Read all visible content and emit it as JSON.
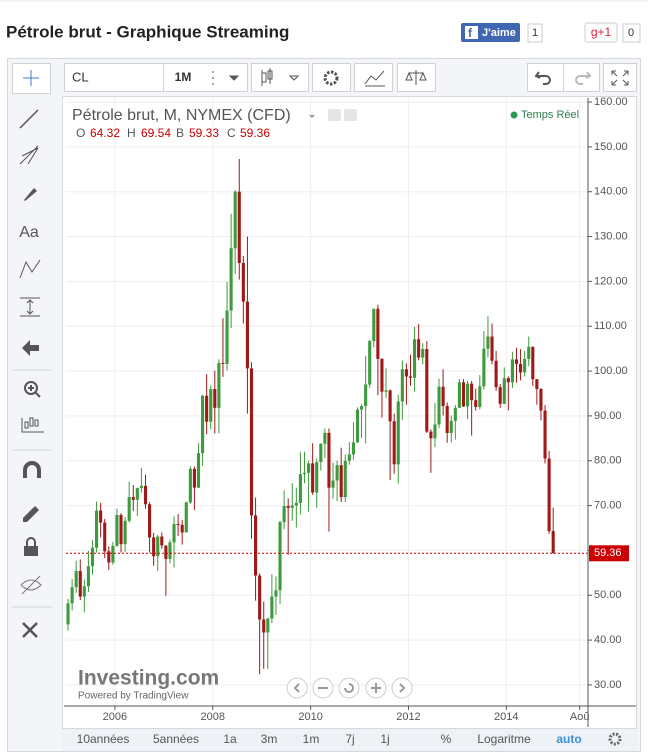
{
  "header": {
    "title": "Pétrole brut - Graphique Streaming",
    "like": "J'aime",
    "like_count": 1,
    "gplus": "g+1",
    "gplus_count": 0
  },
  "toolbar": {
    "symbol": "CL",
    "interval": "1M"
  },
  "sidebar": {
    "text_tool": "Aa"
  },
  "legend": {
    "title": "Pétrole brut, M, NYMEX (CFD)",
    "open": "O",
    "high": "H",
    "low": "B",
    "close": "C",
    "realtime": "Temps Réel"
  },
  "branding": {
    "logo": "Investing.com",
    "powered": "Powered by TradingView"
  },
  "bottom_bar": [
    "10années",
    "5années",
    "1a",
    "3m",
    "1m",
    "7j",
    "1j",
    "%",
    "Logaritme",
    "auto"
  ],
  "chart_data": {
    "type": "candlestick",
    "grid": true,
    "up_color": "#3d9a3d",
    "down_color": "#a01818",
    "last_price_color": "#cc0000",
    "xlim": [
      2005,
      2015.67
    ],
    "xticks": [
      2006,
      2008,
      2010,
      2012,
      2014,
      {
        "value": 2015.5,
        "label": "Aoû"
      }
    ],
    "ylim": [
      25.3,
      160.9
    ],
    "yticks": [
      {
        "value": 30,
        "label": "30.00"
      },
      {
        "value": 40,
        "label": "40.00"
      },
      {
        "value": 50,
        "label": "50.00"
      },
      {
        "value": 60,
        "label": "60.00"
      },
      {
        "value": 70,
        "label": "70.00"
      },
      {
        "value": 80,
        "label": "80.00"
      },
      {
        "value": 90,
        "label": "90.00"
      },
      {
        "value": 100,
        "label": "100.00"
      },
      {
        "value": 110,
        "label": "110.00"
      },
      {
        "value": 120,
        "label": "120.00"
      },
      {
        "value": 130,
        "label": "130.00"
      },
      {
        "value": 140,
        "label": "140.00"
      },
      {
        "value": 150,
        "label": "150.00"
      },
      {
        "value": 160,
        "label": "160.00"
      }
    ],
    "candles": [
      [
        43.5,
        49.2,
        42.1,
        48.2
      ],
      [
        48.2,
        53.6,
        46.6,
        51.8
      ],
      [
        51.8,
        57.7,
        50.5,
        55.4
      ],
      [
        55.4,
        58.0,
        48.9,
        49.7
      ],
      [
        49.7,
        53.5,
        46.2,
        52.0
      ],
      [
        52.0,
        59.9,
        50.7,
        56.5
      ],
      [
        56.5,
        62.3,
        54.6,
        60.6
      ],
      [
        60.6,
        70.9,
        59.5,
        68.9
      ],
      [
        68.9,
        70.6,
        62.9,
        66.2
      ],
      [
        66.2,
        67.0,
        58.3,
        59.8
      ],
      [
        59.8,
        60.9,
        55.6,
        57.3
      ],
      [
        57.3,
        61.9,
        56.8,
        61.0
      ],
      [
        61.0,
        69.3,
        60.8,
        67.9
      ],
      [
        67.9,
        68.3,
        59.5,
        61.4
      ],
      [
        61.4,
        67.4,
        59.7,
        66.6
      ],
      [
        66.6,
        75.3,
        66.2,
        71.9
      ],
      [
        71.9,
        74.6,
        68.8,
        71.3
      ],
      [
        71.3,
        74.0,
        67.7,
        73.9
      ],
      [
        73.9,
        78.4,
        72.9,
        74.4
      ],
      [
        74.4,
        76.9,
        69.3,
        70.3
      ],
      [
        70.3,
        70.8,
        59.5,
        62.9
      ],
      [
        62.9,
        63.9,
        56.6,
        58.7
      ],
      [
        58.7,
        63.5,
        55.4,
        63.1
      ],
      [
        63.1,
        64.0,
        60.4,
        61.1
      ],
      [
        61.1,
        61.1,
        49.9,
        58.1
      ],
      [
        58.1,
        62.4,
        57.1,
        61.8
      ],
      [
        61.8,
        67.6,
        56.2,
        65.9
      ],
      [
        65.9,
        68.1,
        63.2,
        65.7
      ],
      [
        65.7,
        66.8,
        61.3,
        64.0
      ],
      [
        64.0,
        70.9,
        64.0,
        70.7
      ],
      [
        70.7,
        78.8,
        70.4,
        78.2
      ],
      [
        78.2,
        78.7,
        69.0,
        74.0
      ],
      [
        74.0,
        83.9,
        73.9,
        81.7
      ],
      [
        81.7,
        94.7,
        78.9,
        94.5
      ],
      [
        94.5,
        99.3,
        85.9,
        88.7
      ],
      [
        88.7,
        96.8,
        87.0,
        96.0
      ],
      [
        96.0,
        100.1,
        86.1,
        91.8
      ],
      [
        91.8,
        102.6,
        86.1,
        101.8
      ],
      [
        101.8,
        111.8,
        98.7,
        101.6
      ],
      [
        101.6,
        119.9,
        100.1,
        113.5
      ],
      [
        113.5,
        135.1,
        109.6,
        127.4
      ],
      [
        127.4,
        140.4,
        121.6,
        140.0
      ],
      [
        140.0,
        147.3,
        120.4,
        124.1
      ],
      [
        124.1,
        125.7,
        110.6,
        115.5
      ],
      [
        115.5,
        130.0,
        90.5,
        100.6
      ],
      [
        100.6,
        102.0,
        62.6,
        67.8
      ],
      [
        67.8,
        71.8,
        48.8,
        54.4
      ],
      [
        54.4,
        54.9,
        32.4,
        44.6
      ],
      [
        44.6,
        48.6,
        33.6,
        41.7
      ],
      [
        41.7,
        45.0,
        33.6,
        44.8
      ],
      [
        44.8,
        54.7,
        43.8,
        49.7
      ],
      [
        49.7,
        54.2,
        45.6,
        51.1
      ],
      [
        51.1,
        66.6,
        48.1,
        66.3
      ],
      [
        66.3,
        73.4,
        64.7,
        69.9
      ],
      [
        69.9,
        71.6,
        59.0,
        69.5
      ],
      [
        69.5,
        75.0,
        66.6,
        70.0
      ],
      [
        70.0,
        74.0,
        65.1,
        70.6
      ],
      [
        70.6,
        82.0,
        68.0,
        77.0
      ],
      [
        77.0,
        82.0,
        75.0,
        77.3
      ],
      [
        77.3,
        80.0,
        68.6,
        79.4
      ],
      [
        79.4,
        83.9,
        72.4,
        72.9
      ],
      [
        72.9,
        80.5,
        69.5,
        79.7
      ],
      [
        79.7,
        83.9,
        77.8,
        83.8
      ],
      [
        83.8,
        87.2,
        80.6,
        86.2
      ],
      [
        86.2,
        87.2,
        64.2,
        74.0
      ],
      [
        74.0,
        79.6,
        71.5,
        75.6
      ],
      [
        75.6,
        80.0,
        71.0,
        79.0
      ],
      [
        79.0,
        82.9,
        70.8,
        71.9
      ],
      [
        71.9,
        81.4,
        70.8,
        80.0
      ],
      [
        80.0,
        84.2,
        79.1,
        81.4
      ],
      [
        81.4,
        88.6,
        80.2,
        84.1
      ],
      [
        84.1,
        91.9,
        84.0,
        91.4
      ],
      [
        91.4,
        92.6,
        85.1,
        92.2
      ],
      [
        92.2,
        103.4,
        83.9,
        97.0
      ],
      [
        97.0,
        106.9,
        96.3,
        106.7
      ],
      [
        106.7,
        113.9,
        105.3,
        113.9
      ],
      [
        113.9,
        114.8,
        94.6,
        102.7
      ],
      [
        102.7,
        102.9,
        89.6,
        95.4
      ],
      [
        95.4,
        100.6,
        94.0,
        95.7
      ],
      [
        95.7,
        95.9,
        75.7,
        88.8
      ],
      [
        88.8,
        90.5,
        77.1,
        79.2
      ],
      [
        79.2,
        94.7,
        74.9,
        93.2
      ],
      [
        93.2,
        102.4,
        89.1,
        100.4
      ],
      [
        100.4,
        101.7,
        92.5,
        98.8
      ],
      [
        98.8,
        103.7,
        96.7,
        98.5
      ],
      [
        98.5,
        109.9,
        95.4,
        107.1
      ],
      [
        107.1,
        110.5,
        102.4,
        103.0
      ],
      [
        103.0,
        106.2,
        101.5,
        104.9
      ],
      [
        104.9,
        106.7,
        86.2,
        86.5
      ],
      [
        86.5,
        87.0,
        77.3,
        85.0
      ],
      [
        85.0,
        92.9,
        83.0,
        88.1
      ],
      [
        88.1,
        98.3,
        87.3,
        96.5
      ],
      [
        96.5,
        100.4,
        90.1,
        92.2
      ],
      [
        92.2,
        93.0,
        84.0,
        86.2
      ],
      [
        86.2,
        90.1,
        84.1,
        88.9
      ],
      [
        88.9,
        92.4,
        84.7,
        91.8
      ],
      [
        91.8,
        98.2,
        91.8,
        97.5
      ],
      [
        97.5,
        98.2,
        92.0,
        92.1
      ],
      [
        92.1,
        97.8,
        89.3,
        97.2
      ],
      [
        97.2,
        97.8,
        85.6,
        93.5
      ],
      [
        93.5,
        96.1,
        91.2,
        92.0
      ],
      [
        92.0,
        99.1,
        91.5,
        96.6
      ],
      [
        96.6,
        108.9,
        95.9,
        105.0
      ],
      [
        105.0,
        112.2,
        103.1,
        107.7
      ],
      [
        107.7,
        110.6,
        101.5,
        102.3
      ],
      [
        102.3,
        104.5,
        95.6,
        96.4
      ],
      [
        96.4,
        97.1,
        91.8,
        92.7
      ],
      [
        92.7,
        100.8,
        92.6,
        98.4
      ],
      [
        98.4,
        98.8,
        91.2,
        97.5
      ],
      [
        97.5,
        104.3,
        96.2,
        102.6
      ],
      [
        102.6,
        105.2,
        97.4,
        101.6
      ],
      [
        101.6,
        104.9,
        97.9,
        99.7
      ],
      [
        99.7,
        104.5,
        98.8,
        102.7
      ],
      [
        102.7,
        107.7,
        101.1,
        105.4
      ],
      [
        105.4,
        105.5,
        96.7,
        98.2
      ],
      [
        98.2,
        98.2,
        92.5,
        96.0
      ],
      [
        96.0,
        96.2,
        89.0,
        91.2
      ],
      [
        91.2,
        92.4,
        79.4,
        80.5
      ],
      [
        80.5,
        82.2,
        63.7,
        64.3
      ],
      [
        64.32,
        69.54,
        59.33,
        59.36
      ]
    ]
  }
}
